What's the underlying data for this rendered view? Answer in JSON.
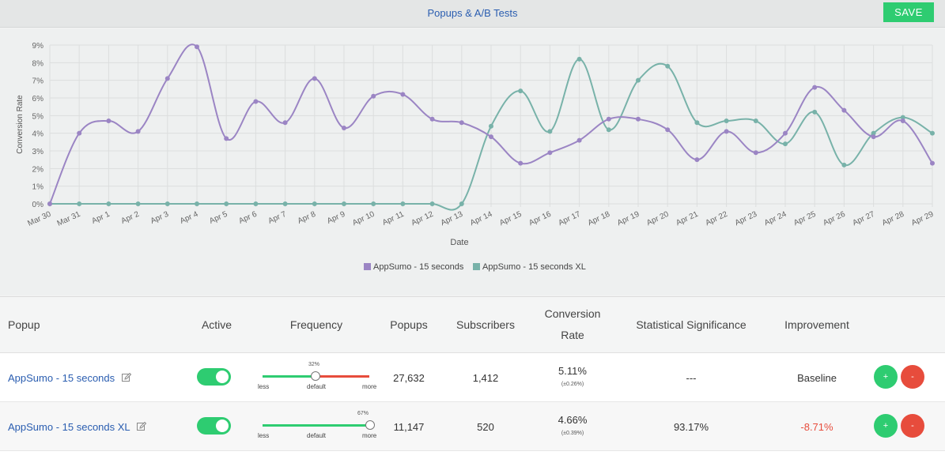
{
  "header": {
    "title": "Popups & A/B Tests",
    "save_label": "SAVE"
  },
  "chart_data": {
    "type": "line",
    "xlabel": "Date",
    "ylabel": "Conversion Rate",
    "ylim": [
      0,
      9
    ],
    "yticks": [
      "0%",
      "1%",
      "2%",
      "3%",
      "4%",
      "5%",
      "6%",
      "7%",
      "8%",
      "9%"
    ],
    "categories": [
      "Mar 30",
      "Mar 31",
      "Apr 1",
      "Apr 2",
      "Apr 3",
      "Apr 4",
      "Apr 5",
      "Apr 6",
      "Apr 7",
      "Apr 8",
      "Apr 9",
      "Apr 10",
      "Apr 11",
      "Apr 12",
      "Apr 13",
      "Apr 14",
      "Apr 15",
      "Apr 16",
      "Apr 17",
      "Apr 18",
      "Apr 19",
      "Apr 20",
      "Apr 21",
      "Apr 22",
      "Apr 23",
      "Apr 24",
      "Apr 25",
      "Apr 26",
      "Apr 27",
      "Apr 28",
      "Apr 29"
    ],
    "series": [
      {
        "name": "AppSumo - 15 seconds",
        "color": "#9b85c4",
        "values": [
          0,
          4.0,
          4.7,
          4.1,
          7.1,
          8.9,
          3.7,
          5.8,
          4.6,
          7.1,
          4.3,
          6.1,
          6.2,
          4.8,
          4.6,
          3.8,
          2.3,
          2.9,
          3.6,
          4.8,
          4.8,
          4.2,
          2.5,
          4.1,
          2.9,
          4.0,
          6.6,
          5.3,
          3.8,
          4.7,
          2.3
        ]
      },
      {
        "name": "AppSumo - 15 seconds XL",
        "color": "#78b2a9",
        "values": [
          0,
          0,
          0,
          0,
          0,
          0,
          0,
          0,
          0,
          0,
          0,
          0,
          0,
          0,
          0,
          4.4,
          6.4,
          4.1,
          8.2,
          4.2,
          7.0,
          7.8,
          4.6,
          4.7,
          4.7,
          3.4,
          5.2,
          2.2,
          4.0,
          4.9,
          4.0
        ]
      }
    ],
    "legend_position": "bottom",
    "grid": true
  },
  "table": {
    "headers": {
      "popup": "Popup",
      "active": "Active",
      "frequency": "Frequency",
      "popups": "Popups",
      "subscribers": "Subscribers",
      "conversion1": "Conversion",
      "conversion2": "Rate",
      "significance": "Statistical Significance",
      "improvement": "Improvement"
    },
    "rows": [
      {
        "name": "AppSumo - 15 seconds",
        "active": true,
        "frequency_pct": "32%",
        "frequency": 0.47,
        "popups": "27,632",
        "subscribers": "1,412",
        "rate": "5.11%",
        "rate_err": "(±0.26%)",
        "significance": "---",
        "improvement": "Baseline",
        "plus": "+",
        "minus": "-"
      },
      {
        "name": "AppSumo - 15 seconds XL",
        "active": true,
        "frequency_pct": "67%",
        "frequency": 0.97,
        "popups": "11,147",
        "subscribers": "520",
        "rate": "4.66%",
        "rate_err": "(±0.39%)",
        "significance": "93.17%",
        "improvement": "-8.71%",
        "plus": "+",
        "minus": "-"
      }
    ],
    "slider_labels": {
      "less": "less",
      "default": "default",
      "more": "more"
    }
  }
}
